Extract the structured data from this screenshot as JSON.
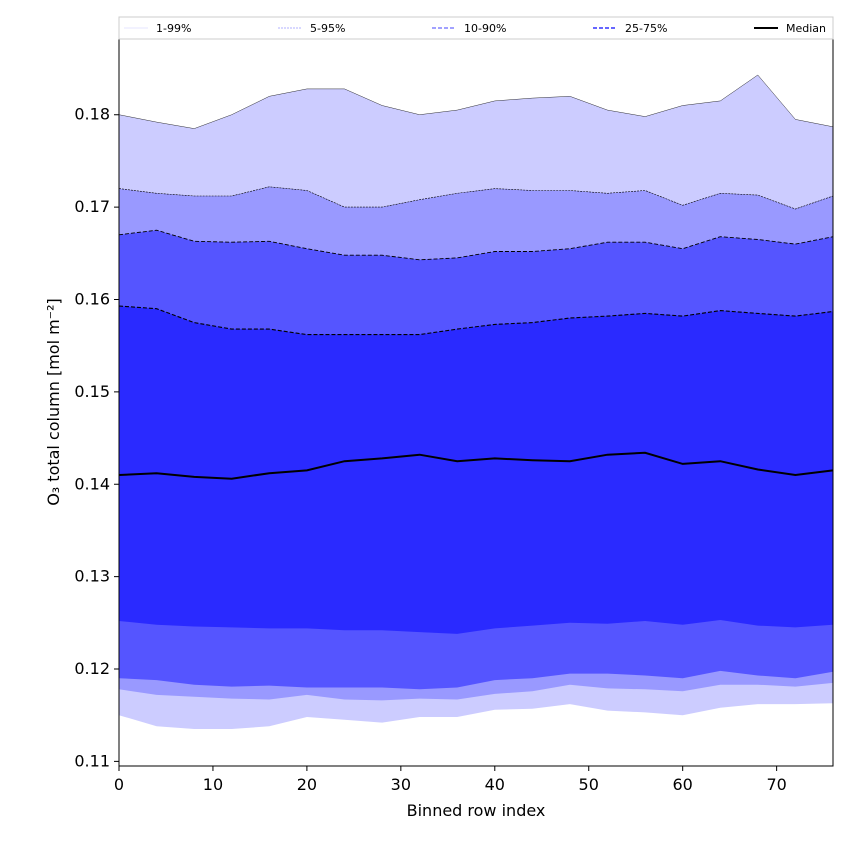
{
  "chart_data": {
    "type": "area",
    "xlabel": "Binned row index",
    "ylabel": "O₃ total column [mol m⁻²]",
    "xlim": [
      0,
      76
    ],
    "ylim": [
      0.1095,
      0.1882
    ],
    "x_ticks": [
      0,
      10,
      20,
      30,
      40,
      50,
      60,
      70
    ],
    "y_ticks": [
      0.11,
      0.12,
      0.13,
      0.14,
      0.15,
      0.16,
      0.17,
      0.18
    ],
    "y_tick_labels": [
      "0.11",
      "0.12",
      "0.13",
      "0.14",
      "0.15",
      "0.16",
      "0.17",
      "0.18"
    ],
    "legend": {
      "placement": "top",
      "entries": [
        "1-99%",
        "5-95%",
        "10-90%",
        "25-75%",
        "Median"
      ]
    },
    "colors": {
      "band_1_99": "#ccccff",
      "band_5_95": "#9999ff",
      "band_10_90": "#5555ff",
      "band_25_75": "#2a2aff",
      "median": "#000000"
    },
    "x": [
      0,
      4,
      8,
      12,
      16,
      20,
      24,
      28,
      32,
      36,
      40,
      44,
      48,
      52,
      56,
      60,
      64,
      68,
      72,
      76
    ],
    "series": [
      {
        "name": "1-99%",
        "upper": [
          0.18,
          0.1792,
          0.1785,
          0.18,
          0.182,
          0.1828,
          0.1828,
          0.181,
          0.18,
          0.1805,
          0.1815,
          0.1818,
          0.182,
          0.1805,
          0.1798,
          0.181,
          0.1815,
          0.1843,
          0.1795,
          0.1787
        ],
        "lower": [
          0.115,
          0.1138,
          0.1135,
          0.1135,
          0.1138,
          0.1148,
          0.1145,
          0.1142,
          0.1148,
          0.1148,
          0.1156,
          0.1157,
          0.1162,
          0.1155,
          0.1153,
          0.115,
          0.1158,
          0.1162,
          0.1162,
          0.1163
        ]
      },
      {
        "name": "5-95%",
        "upper": [
          0.172,
          0.1715,
          0.1712,
          0.1712,
          0.1722,
          0.1718,
          0.17,
          0.17,
          0.1708,
          0.1715,
          0.172,
          0.1718,
          0.1718,
          0.1715,
          0.1718,
          0.1702,
          0.1715,
          0.1713,
          0.1698,
          0.1712
        ],
        "lower": [
          0.1178,
          0.1172,
          0.117,
          0.1168,
          0.1167,
          0.1172,
          0.1167,
          0.1166,
          0.1168,
          0.1167,
          0.1173,
          0.1176,
          0.1183,
          0.1179,
          0.1178,
          0.1176,
          0.1183,
          0.1183,
          0.1181,
          0.1185
        ]
      },
      {
        "name": "10-90%",
        "upper": [
          0.167,
          0.1675,
          0.1663,
          0.1662,
          0.1663,
          0.1655,
          0.1648,
          0.1648,
          0.1643,
          0.1645,
          0.1652,
          0.1652,
          0.1655,
          0.1662,
          0.1662,
          0.1655,
          0.1668,
          0.1665,
          0.166,
          0.1668
        ],
        "lower": [
          0.119,
          0.1188,
          0.1183,
          0.1181,
          0.1182,
          0.118,
          0.118,
          0.118,
          0.1178,
          0.118,
          0.1188,
          0.119,
          0.1195,
          0.1195,
          0.1193,
          0.119,
          0.1198,
          0.1193,
          0.119,
          0.1197
        ]
      },
      {
        "name": "25-75%",
        "upper": [
          0.1593,
          0.159,
          0.1575,
          0.1568,
          0.1568,
          0.1562,
          0.1562,
          0.1562,
          0.1562,
          0.1568,
          0.1573,
          0.1575,
          0.158,
          0.1582,
          0.1585,
          0.1582,
          0.1588,
          0.1585,
          0.1582,
          0.1587
        ],
        "lower": [
          0.1252,
          0.1248,
          0.1246,
          0.1245,
          0.1244,
          0.1244,
          0.1242,
          0.1242,
          0.124,
          0.1238,
          0.1244,
          0.1247,
          0.125,
          0.1249,
          0.1252,
          0.1248,
          0.1253,
          0.1247,
          0.1245,
          0.1248
        ]
      },
      {
        "name": "Median",
        "values": [
          0.141,
          0.1412,
          0.1408,
          0.1406,
          0.1412,
          0.1415,
          0.1425,
          0.1428,
          0.1432,
          0.1425,
          0.1428,
          0.1426,
          0.1425,
          0.1432,
          0.1434,
          0.1422,
          0.1425,
          0.1416,
          0.141,
          0.1415
        ]
      }
    ]
  }
}
